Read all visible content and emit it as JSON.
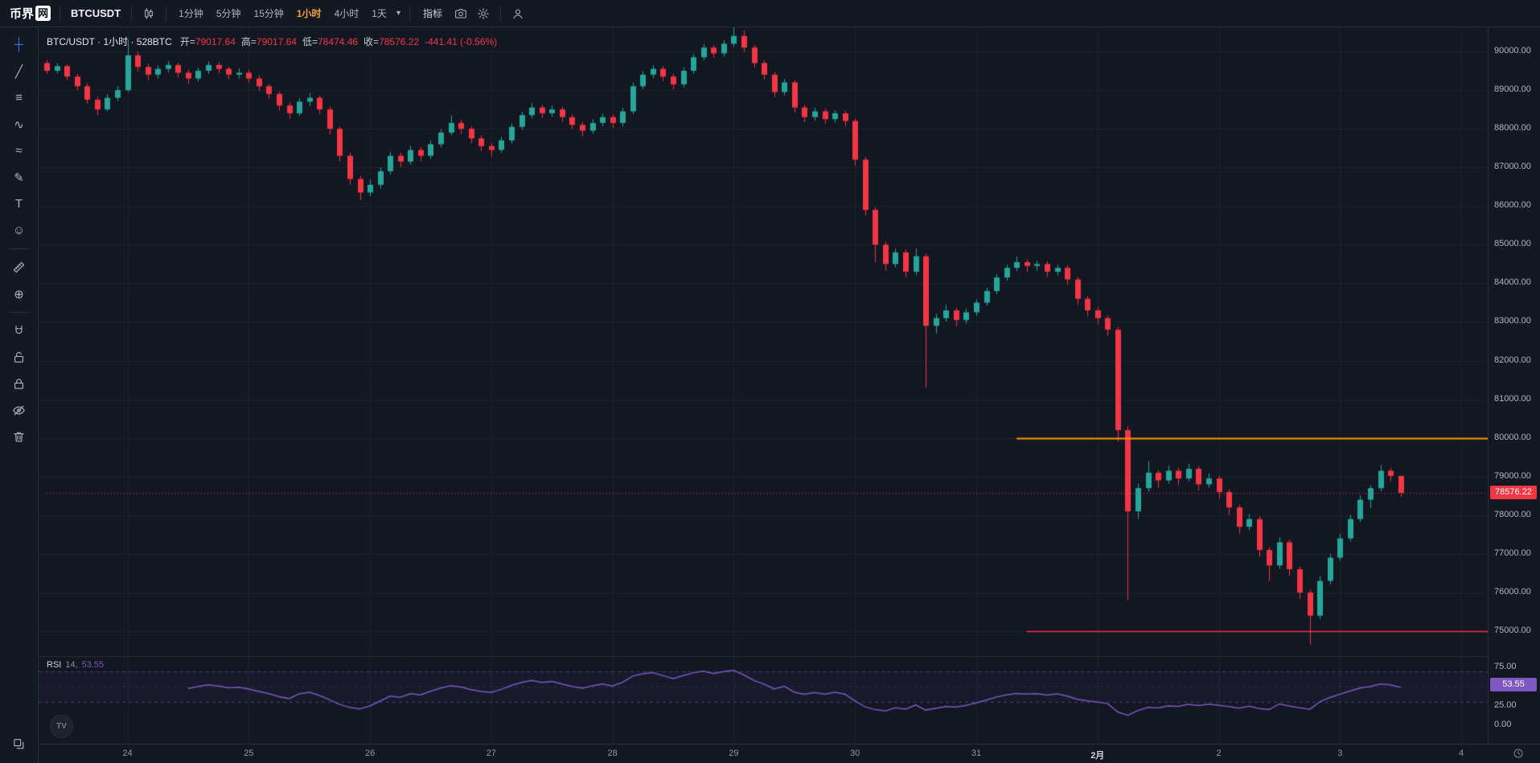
{
  "app": {
    "logo_text_left": "币界",
    "logo_text_right": "网"
  },
  "toolbar": {
    "symbol": "BTCUSDT",
    "timeframes": [
      {
        "label": "1分钟",
        "active": false
      },
      {
        "label": "5分钟",
        "active": false
      },
      {
        "label": "15分钟",
        "active": false
      },
      {
        "label": "1小时",
        "active": true
      },
      {
        "label": "4小时",
        "active": false
      },
      {
        "label": "1天",
        "active": false
      }
    ],
    "dropdown_caret": "▾",
    "indicators_label": "指标",
    "right_icons": [
      {
        "name": "camera-icon",
        "svg": "camera"
      },
      {
        "name": "gear-icon",
        "svg": "gear"
      },
      {
        "name": "user-icon",
        "svg": "user",
        "sep_before": true
      }
    ]
  },
  "left_toolbar": {
    "tools": [
      {
        "name": "crosshair-icon",
        "glyph": "┼",
        "active": true
      },
      {
        "name": "trend-line-icon",
        "glyph": "╱"
      },
      {
        "name": "fib-retracement-icon",
        "glyph": "≡"
      },
      {
        "name": "pattern-icon",
        "glyph": "∿"
      },
      {
        "name": "elliott-wave-icon",
        "glyph": "≈"
      },
      {
        "name": "brush-icon",
        "glyph": "✎"
      },
      {
        "name": "text-icon",
        "glyph": "T"
      },
      {
        "name": "emoji-icon",
        "glyph": "☺"
      },
      {
        "gap": true
      },
      {
        "name": "measure-icon",
        "svg": "ruler"
      },
      {
        "name": "zoom-in-icon",
        "glyph": "⊕"
      },
      {
        "gap": true
      },
      {
        "name": "magnet-icon",
        "svg": "magnet"
      },
      {
        "name": "drawing-lock-icon",
        "svg": "lockOpen"
      },
      {
        "name": "lock-icon",
        "svg": "lock"
      },
      {
        "name": "hide-icon",
        "svg": "eyeOff"
      },
      {
        "name": "delete-icon",
        "svg": "trash"
      },
      {
        "spacer": true
      },
      {
        "name": "object-tree-icon",
        "svg": "layers"
      }
    ]
  },
  "legend": {
    "title": "BTC/USDT · 1小时 · 528BTC",
    "open_label": "开=",
    "open": "79017.64",
    "high_label": "高=",
    "high": "79017.64",
    "low_label": "低=",
    "low": "78474.46",
    "close_label": "收=",
    "close": "78576.22",
    "change": "-441.41 (-0.56%)"
  },
  "rsi_legend": {
    "title": "RSI",
    "period": "14,",
    "value": "53.55"
  },
  "axis_badges": {
    "price": "78576.22",
    "rsi": "53.55"
  },
  "colors": {
    "up": "#26a69a",
    "down": "#f23645",
    "grid": "rgba(41,46,57,0.55)",
    "divider": "#2a2e39",
    "accent": "#f0a43a",
    "rsi": "#7e57c2",
    "rsi_band": "rgba(126,87,194,0.5)",
    "rsi_mid": "rgba(126,87,194,0.25)",
    "rsi_fill": "rgba(126,87,194,0.06)"
  },
  "chart_data": {
    "type": "candlestick",
    "symbol": "BTC/USDT",
    "interval": "1小时",
    "last_price": 78576.22,
    "change": -441.41,
    "change_pct": -0.56,
    "y_axis": {
      "ticks": [
        "90000.00",
        "89000.00",
        "88000.00",
        "87000.00",
        "86000.00",
        "85000.00",
        "84000.00",
        "83000.00",
        "82000.00",
        "81000.00",
        "80000.00",
        "79000.00",
        "78000.00",
        "77000.00",
        "76000.00",
        "75000.00"
      ]
    },
    "rsi_axis": {
      "ticks": [
        "75.00",
        "25.00",
        "0.00"
      ]
    },
    "x_axis": {
      "labels": [
        {
          "t": "24",
          "bar": 8
        },
        {
          "t": "25",
          "bar": 20
        },
        {
          "t": "26",
          "bar": 32
        },
        {
          "t": "27",
          "bar": 44
        },
        {
          "t": "28",
          "bar": 56
        },
        {
          "t": "29",
          "bar": 68
        },
        {
          "t": "30",
          "bar": 80
        },
        {
          "t": "31",
          "bar": 92
        },
        {
          "t": "2月",
          "bar": 104,
          "month": true
        },
        {
          "t": "2",
          "bar": 116
        },
        {
          "t": "3",
          "bar": 128
        },
        {
          "t": "4",
          "bar": 140
        }
      ]
    },
    "levels": [
      {
        "name": "resistance-line",
        "price": 80000,
        "color": "#ff9800",
        "from_bar": 96,
        "style": "solid",
        "width": 2
      },
      {
        "name": "support-line",
        "price": 75000,
        "color": "#f23645",
        "from_bar": 97,
        "style": "solid",
        "width": 1.5
      },
      {
        "name": "last-price-line",
        "price": 78576.22,
        "color": "#f23645",
        "from_bar": 0,
        "style": "dotted",
        "width": 1
      }
    ],
    "rsi": {
      "period": 14,
      "upper_band": 70,
      "lower_band": 30,
      "mid": 50,
      "current": 53.55,
      "color": "#7e57c2"
    },
    "candles": [
      [
        89700,
        89780,
        89420,
        89500
      ],
      [
        89500,
        89700,
        89430,
        89620
      ],
      [
        89620,
        89660,
        89250,
        89350
      ],
      [
        89350,
        89420,
        89000,
        89100
      ],
      [
        89100,
        89180,
        88650,
        88750
      ],
      [
        88750,
        88830,
        88350,
        88500
      ],
      [
        88500,
        88900,
        88450,
        88800
      ],
      [
        88800,
        89100,
        88720,
        89000
      ],
      [
        89000,
        90300,
        88950,
        89900
      ],
      [
        89900,
        90000,
        89480,
        89600
      ],
      [
        89600,
        89680,
        89260,
        89400
      ],
      [
        89400,
        89640,
        89300,
        89550
      ],
      [
        89550,
        89750,
        89460,
        89650
      ],
      [
        89650,
        89700,
        89330,
        89450
      ],
      [
        89450,
        89520,
        89160,
        89300
      ],
      [
        89300,
        89580,
        89220,
        89500
      ],
      [
        89500,
        89740,
        89420,
        89650
      ],
      [
        89650,
        89720,
        89430,
        89550
      ],
      [
        89550,
        89600,
        89270,
        89400
      ],
      [
        89400,
        89560,
        89300,
        89450
      ],
      [
        89450,
        89520,
        89180,
        89300
      ],
      [
        89300,
        89380,
        88980,
        89100
      ],
      [
        89100,
        89160,
        88780,
        88900
      ],
      [
        88900,
        88960,
        88470,
        88600
      ],
      [
        88600,
        88680,
        88260,
        88400
      ],
      [
        88400,
        88790,
        88330,
        88700
      ],
      [
        88700,
        88930,
        88590,
        88800
      ],
      [
        88800,
        88860,
        88380,
        88500
      ],
      [
        88500,
        88570,
        87850,
        88000
      ],
      [
        88000,
        88060,
        87150,
        87300
      ],
      [
        87300,
        87380,
        86550,
        86700
      ],
      [
        86700,
        86780,
        86150,
        86350
      ],
      [
        86350,
        86680,
        86250,
        86550
      ],
      [
        86550,
        87000,
        86450,
        86900
      ],
      [
        86900,
        87400,
        86820,
        87300
      ],
      [
        87300,
        87380,
        87010,
        87150
      ],
      [
        87150,
        87560,
        87070,
        87450
      ],
      [
        87450,
        87520,
        87160,
        87300
      ],
      [
        87300,
        87700,
        87220,
        87600
      ],
      [
        87600,
        87990,
        87520,
        87900
      ],
      [
        87900,
        88350,
        87830,
        88150
      ],
      [
        88150,
        88230,
        87870,
        88000
      ],
      [
        88000,
        88070,
        87630,
        87750
      ],
      [
        87750,
        87830,
        87420,
        87550
      ],
      [
        87550,
        87620,
        87280,
        87450
      ],
      [
        87450,
        87790,
        87370,
        87700
      ],
      [
        87700,
        88140,
        87620,
        88050
      ],
      [
        88050,
        88440,
        87970,
        88350
      ],
      [
        88350,
        88660,
        88270,
        88550
      ],
      [
        88550,
        88620,
        88280,
        88400
      ],
      [
        88400,
        88600,
        88310,
        88500
      ],
      [
        88500,
        88570,
        88180,
        88300
      ],
      [
        88300,
        88380,
        87990,
        88100
      ],
      [
        88100,
        88170,
        87810,
        87950
      ],
      [
        87950,
        88250,
        87870,
        88150
      ],
      [
        88150,
        88390,
        88060,
        88300
      ],
      [
        88300,
        88370,
        88020,
        88150
      ],
      [
        88150,
        88540,
        88060,
        88450
      ],
      [
        88450,
        89190,
        88380,
        89100
      ],
      [
        89100,
        89490,
        89020,
        89400
      ],
      [
        89400,
        89650,
        89310,
        89550
      ],
      [
        89550,
        89620,
        89230,
        89350
      ],
      [
        89350,
        89420,
        89020,
        89150
      ],
      [
        89150,
        89590,
        89070,
        89500
      ],
      [
        89500,
        89940,
        89420,
        89850
      ],
      [
        89850,
        90190,
        89770,
        90100
      ],
      [
        90100,
        90170,
        89830,
        89950
      ],
      [
        89950,
        90290,
        89870,
        90200
      ],
      [
        90200,
        90650,
        90120,
        90400
      ],
      [
        90400,
        90550,
        89980,
        90100
      ],
      [
        90100,
        90170,
        89580,
        89700
      ],
      [
        89700,
        89770,
        89280,
        89400
      ],
      [
        89400,
        89460,
        88820,
        88950
      ],
      [
        88950,
        89290,
        88860,
        89200
      ],
      [
        89200,
        89260,
        88420,
        88550
      ],
      [
        88550,
        88620,
        88170,
        88300
      ],
      [
        88300,
        88540,
        88210,
        88450
      ],
      [
        88450,
        88520,
        88130,
        88250
      ],
      [
        88250,
        88480,
        88160,
        88400
      ],
      [
        88400,
        88460,
        88070,
        88200
      ],
      [
        88200,
        88260,
        87050,
        87200
      ],
      [
        87200,
        87270,
        85760,
        85900
      ],
      [
        85900,
        85970,
        84550,
        85000
      ],
      [
        85000,
        85080,
        84330,
        84500
      ],
      [
        84500,
        84890,
        84410,
        84800
      ],
      [
        84800,
        84870,
        84160,
        84300
      ],
      [
        84300,
        84900,
        84210,
        84700
      ],
      [
        84700,
        84770,
        81300,
        82900
      ],
      [
        82900,
        83210,
        82700,
        83100
      ],
      [
        83100,
        83460,
        83010,
        83300
      ],
      [
        83300,
        83370,
        82890,
        83050
      ],
      [
        83050,
        83350,
        82960,
        83250
      ],
      [
        83250,
        83580,
        83160,
        83500
      ],
      [
        83500,
        83890,
        83420,
        83800
      ],
      [
        83800,
        84230,
        83720,
        84150
      ],
      [
        84150,
        84480,
        84070,
        84400
      ],
      [
        84400,
        84700,
        84320,
        84550
      ],
      [
        84550,
        84620,
        84300,
        84450
      ],
      [
        84450,
        84580,
        84330,
        84500
      ],
      [
        84500,
        84570,
        84160,
        84300
      ],
      [
        84300,
        84480,
        84210,
        84400
      ],
      [
        84400,
        84470,
        83960,
        84100
      ],
      [
        84100,
        84170,
        83450,
        83600
      ],
      [
        83600,
        83670,
        83140,
        83300
      ],
      [
        83300,
        83370,
        82940,
        83100
      ],
      [
        83100,
        83170,
        82640,
        82800
      ],
      [
        82800,
        82870,
        79900,
        80200
      ],
      [
        80200,
        80300,
        75800,
        78100
      ],
      [
        78100,
        78820,
        77900,
        78700
      ],
      [
        78700,
        79400,
        78610,
        79100
      ],
      [
        79100,
        79170,
        78720,
        78900
      ],
      [
        78900,
        79280,
        78820,
        79150
      ],
      [
        79150,
        79220,
        78790,
        78950
      ],
      [
        78950,
        79330,
        78870,
        79200
      ],
      [
        79200,
        79270,
        78640,
        78800
      ],
      [
        78800,
        79080,
        78710,
        78950
      ],
      [
        78950,
        79020,
        78430,
        78600
      ],
      [
        78600,
        78670,
        78010,
        78200
      ],
      [
        78200,
        78270,
        77520,
        77700
      ],
      [
        77700,
        78030,
        77610,
        77900
      ],
      [
        77900,
        77970,
        76930,
        77100
      ],
      [
        77100,
        77170,
        76300,
        76700
      ],
      [
        76700,
        77420,
        76610,
        77300
      ],
      [
        77300,
        77370,
        76430,
        76600
      ],
      [
        76600,
        76670,
        75840,
        76000
      ],
      [
        76000,
        76070,
        74650,
        75400
      ],
      [
        75400,
        76420,
        75310,
        76300
      ],
      [
        76300,
        77010,
        76210,
        76900
      ],
      [
        76900,
        77520,
        76820,
        77400
      ],
      [
        77400,
        78010,
        77320,
        77900
      ],
      [
        77900,
        78520,
        77820,
        78400
      ],
      [
        78400,
        78770,
        78180,
        78700
      ],
      [
        78700,
        79300,
        78620,
        79150
      ],
      [
        79150,
        79220,
        78880,
        79017.64
      ],
      [
        79017.64,
        79017.64,
        78474.46,
        78576.22
      ]
    ]
  }
}
